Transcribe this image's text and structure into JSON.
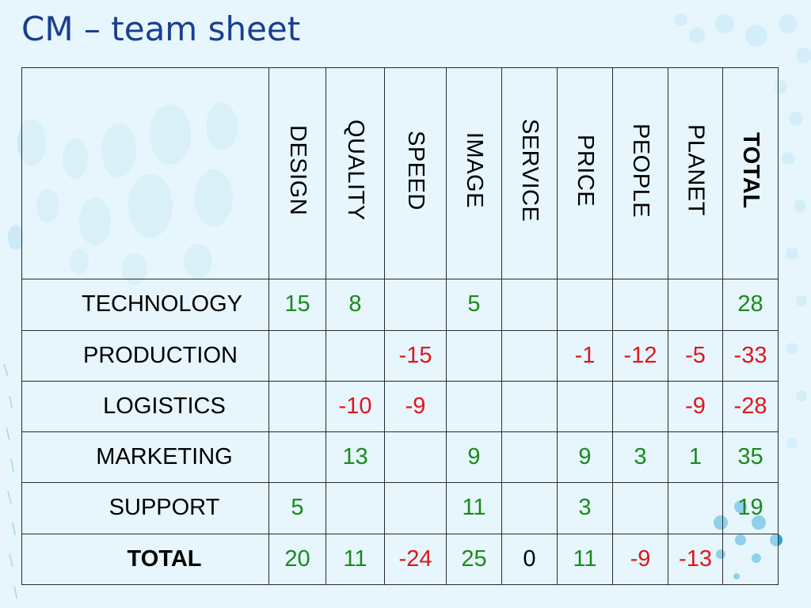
{
  "title": "CM – team sheet",
  "columns": [
    "DESIGN",
    "QUALITY",
    "SPEED",
    "IMAGE",
    "SERVICE",
    "PRICE",
    "PEOPLE",
    "PLANET",
    "TOTAL"
  ],
  "rows": [
    {
      "label": "TECHNOLOGY",
      "cells": [
        "15",
        "8",
        "",
        "5",
        "",
        "",
        "",
        "",
        "28"
      ]
    },
    {
      "label": "PRODUCTION",
      "cells": [
        "",
        "",
        "-15",
        "",
        "",
        "-1",
        "-12",
        "-5",
        "-33"
      ]
    },
    {
      "label": "LOGISTICS",
      "cells": [
        "",
        "-10",
        "-9",
        "",
        "",
        "",
        "",
        "-9",
        "-28"
      ]
    },
    {
      "label": "MARKETING",
      "cells": [
        "",
        "13",
        "",
        "9",
        "",
        "9",
        "3",
        "1",
        "35"
      ]
    },
    {
      "label": "SUPPORT",
      "cells": [
        "5",
        "",
        "",
        "11",
        "",
        "3",
        "",
        "",
        "19"
      ]
    },
    {
      "label": "TOTAL",
      "cells": [
        "20",
        "11",
        "-24",
        "25",
        "0",
        "11",
        "-9",
        "-13",
        ""
      ]
    }
  ],
  "colors": {
    "title": "#1a3e8f",
    "positive": "#1a8a1a",
    "negative": "#e0161a",
    "background": "#e6f6fc",
    "dots": "#29a3d8"
  }
}
